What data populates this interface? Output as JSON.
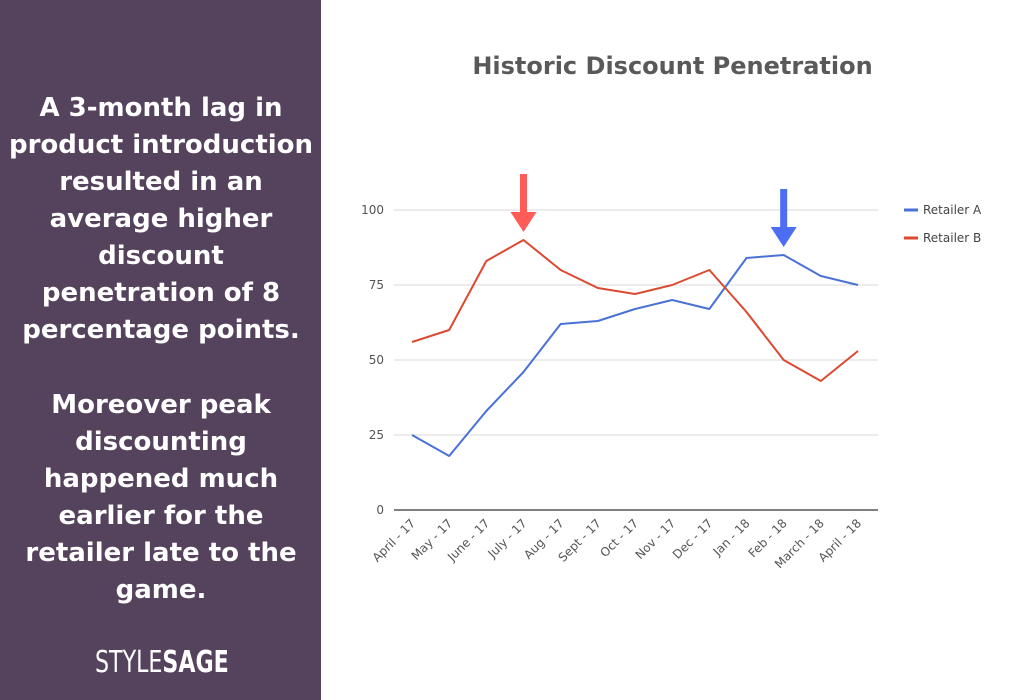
{
  "sidebar": {
    "callout_1": "A 3-month lag in product introduction resulted in an average higher discount penetration of 8 percentage points.",
    "callout_2": "Moreover peak discounting happened much earlier for the retailer late to the game.",
    "logo_part1": "STYLE",
    "logo_part2": "SAGE",
    "background_color": "#55425d"
  },
  "chart_data": {
    "type": "line",
    "title": "Historic Discount Penetration",
    "xlabel": "",
    "ylabel": "",
    "categories": [
      "April - 17",
      "May - 17",
      "June - 17",
      "July - 17",
      "Aug - 17",
      "Sept - 17",
      "Oct - 17",
      "Nov - 17",
      "Dec - 17",
      "Jan - 18",
      "Feb - 18",
      "March - 18",
      "April - 18"
    ],
    "ylim": [
      0,
      100
    ],
    "yticks": [
      0,
      25,
      50,
      75,
      100
    ],
    "grid": true,
    "legend_position": "right",
    "series": [
      {
        "name": "Retailer A",
        "color": "#4a72d6",
        "values": [
          25,
          18,
          33,
          46,
          62,
          63,
          67,
          70,
          67,
          84,
          85,
          78,
          75
        ]
      },
      {
        "name": "Retailer B",
        "color": "#dc4931",
        "values": [
          56,
          60,
          83,
          90,
          80,
          74,
          72,
          75,
          80,
          66,
          50,
          43,
          53
        ]
      }
    ],
    "annotations": [
      {
        "type": "arrow",
        "category": "July - 17",
        "color": "#ff5c57"
      },
      {
        "type": "arrow",
        "category": "Feb - 18",
        "color": "#4b6ef5"
      }
    ]
  }
}
